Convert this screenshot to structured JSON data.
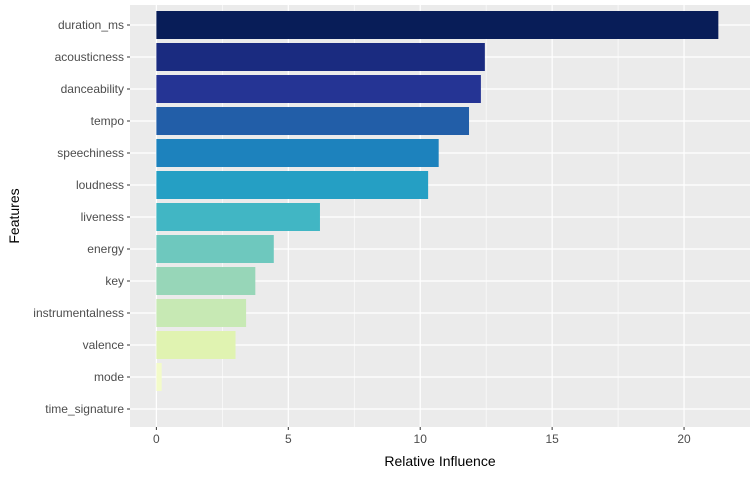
{
  "chart_data": {
    "type": "bar",
    "orientation": "horizontal",
    "xlabel": "Relative Influence",
    "ylabel": "Features",
    "xlim": [
      -1.0,
      22.5
    ],
    "x_ticks": [
      0,
      5,
      10,
      15,
      20
    ],
    "grid": true,
    "legend": "none",
    "categories": [
      "duration_ms",
      "acousticness",
      "danceability",
      "tempo",
      "speechiness",
      "loudness",
      "liveness",
      "energy",
      "key",
      "instrumentalness",
      "valence",
      "mode",
      "time_signature"
    ],
    "values": [
      21.3,
      12.45,
      12.3,
      11.85,
      10.7,
      10.3,
      6.2,
      4.45,
      3.75,
      3.4,
      3.0,
      0.2,
      0.0
    ],
    "colors": [
      "#081d58",
      "#1a2b80",
      "#253494",
      "#225ea8",
      "#1d82bd",
      "#259fc4",
      "#41b6c4",
      "#6ec8be",
      "#97d6b8",
      "#c7e9b4",
      "#e0f3b1",
      "#f3fbc9",
      "#ffffd9"
    ],
    "panel_background": "#ebebeb",
    "grid_color": "#ffffff"
  }
}
